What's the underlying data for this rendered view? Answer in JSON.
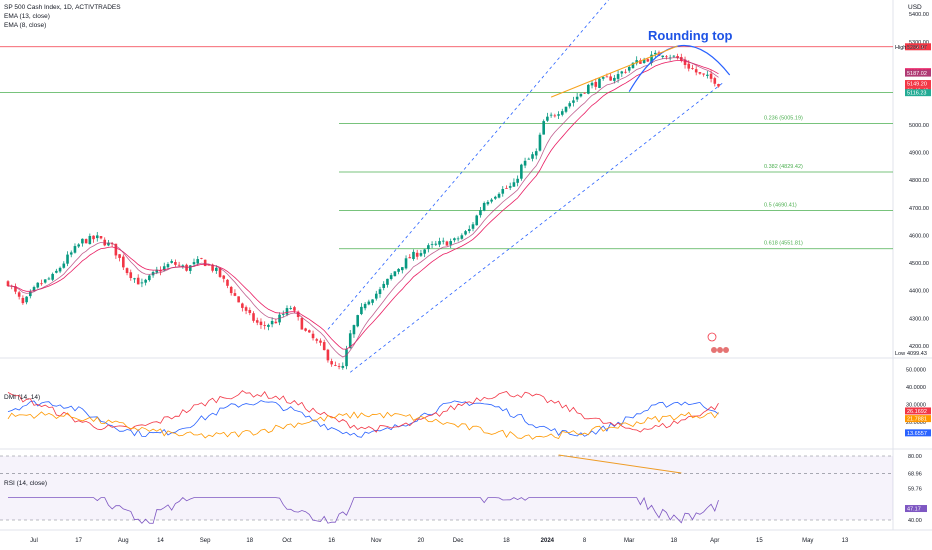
{
  "header": {
    "symbol": "SP 500 Cash Index, 1D, ACTIVTRADES",
    "ema1": "EMA (13, close)",
    "ema2": "EMA (8, close)",
    "currency": "USD"
  },
  "annotation": {
    "text": "Rounding top"
  },
  "price_axis": {
    "ticks": [
      "5400.00",
      "5300.00",
      "5000.00",
      "4900.00",
      "4800.00",
      "4700.00",
      "4600.00",
      "4500.00",
      "4400.00",
      "4300.00",
      "4200.00"
    ],
    "high_label": "High",
    "high_value": "5280.97",
    "low_label": "Low",
    "low_value": "4099.43",
    "tags": [
      "5282.17",
      "5192.04",
      "5187.02",
      "5149.20",
      "06:49:48",
      "5116.23"
    ]
  },
  "fib_levels": [
    {
      "label": "0.236 (5005.19)"
    },
    {
      "label": "0.382 (4829.42)"
    },
    {
      "label": "0.5 (4690.41)"
    },
    {
      "label": "0.618 (4551.81)"
    }
  ],
  "dmi": {
    "title": "DMI (14, 14)",
    "ticks": [
      "50.0000",
      "40.0000",
      "30.0000",
      "20.0000"
    ],
    "tags": [
      "26.1692",
      "21.7881",
      "13.6557"
    ]
  },
  "rsi": {
    "title": "RSI (14, close)",
    "ticks": [
      "80.00",
      "68.96",
      "59.76",
      "40.00"
    ],
    "tag": "47.17"
  },
  "time_axis": {
    "labels": [
      "Jul",
      "17",
      "Aug",
      "14",
      "Sep",
      "18",
      "Oct",
      "16",
      "Nov",
      "20",
      "Dec",
      "18",
      "2024",
      "8",
      "Mar",
      "18",
      "Apr",
      "15",
      "May",
      "13",
      "Jun"
    ]
  },
  "colors": {
    "up": "#089981",
    "down": "#f23645",
    "ema13": "#e91e63",
    "ema8": "#b03a74",
    "fib": "#4caf50",
    "channel": "#2962ff",
    "arc": "#2962ff",
    "trend": "#f7a21b",
    "di_plus": "#2962ff",
    "di_minus": "#f23645",
    "adx": "#ff9800",
    "rsi": "#7e57c2"
  },
  "chart_data": [
    {
      "type": "candlestick",
      "title": "SP 500 Cash Index, 1D, ACTIVTRADES",
      "series_names": [
        "EMA (13, close)",
        "EMA (8, close)"
      ],
      "ylabel": "USD",
      "ylim": [
        4099.43,
        5400
      ],
      "high": 5280.97,
      "low": 4099.43,
      "last": 5149.2,
      "fib_levels": [
        5005.19,
        4829.42,
        4690.41,
        4551.81
      ],
      "horizontal_levels": [
        5282.17,
        5116.23
      ],
      "x_labels": [
        "Jul",
        "17",
        "Aug",
        "14",
        "Sep",
        "18",
        "Oct",
        "16",
        "Nov",
        "20",
        "Dec",
        "18",
        "2024",
        "8",
        "Mar",
        "18",
        "Apr",
        "15",
        "May",
        "13",
        "Jun"
      ],
      "x_label_index": [
        0,
        12,
        24,
        34,
        46,
        58,
        68,
        80,
        92,
        104,
        114,
        127,
        138,
        148,
        160,
        172,
        183,
        195,
        208,
        218,
        232
      ],
      "close_points": [
        [
          0,
          4430
        ],
        [
          4,
          4350
        ],
        [
          8,
          4420
        ],
        [
          12,
          4450
        ],
        [
          16,
          4520
        ],
        [
          20,
          4580
        ],
        [
          24,
          4590
        ],
        [
          28,
          4560
        ],
        [
          32,
          4470
        ],
        [
          36,
          4420
        ],
        [
          40,
          4470
        ],
        [
          44,
          4500
        ],
        [
          48,
          4480
        ],
        [
          52,
          4510
        ],
        [
          56,
          4470
        ],
        [
          60,
          4400
        ],
        [
          64,
          4320
        ],
        [
          68,
          4270
        ],
        [
          72,
          4290
        ],
        [
          76,
          4340
        ],
        [
          80,
          4250
        ],
        [
          84,
          4200
        ],
        [
          88,
          4120
        ],
        [
          90,
          4120
        ],
        [
          92,
          4240
        ],
        [
          96,
          4360
        ],
        [
          100,
          4400
        ],
        [
          104,
          4470
        ],
        [
          108,
          4520
        ],
        [
          112,
          4550
        ],
        [
          116,
          4570
        ],
        [
          120,
          4580
        ],
        [
          124,
          4620
        ],
        [
          128,
          4720
        ],
        [
          132,
          4760
        ],
        [
          136,
          4780
        ],
        [
          138,
          4850
        ],
        [
          142,
          4900
        ],
        [
          144,
          5010
        ],
        [
          148,
          5050
        ],
        [
          152,
          5090
        ],
        [
          156,
          5140
        ],
        [
          160,
          5160
        ],
        [
          164,
          5180
        ],
        [
          168,
          5220
        ],
        [
          172,
          5240
        ],
        [
          176,
          5260
        ],
        [
          180,
          5240
        ],
        [
          182,
          5220
        ],
        [
          186,
          5180
        ],
        [
          190,
          5160
        ],
        [
          191,
          5149.2
        ]
      ]
    },
    {
      "type": "line",
      "title": "DMI (14, 14)",
      "ylim": [
        5,
        55
      ],
      "series": [
        {
          "name": "+DI",
          "last": 13.6557
        },
        {
          "name": "-DI",
          "last": 26.1692
        },
        {
          "name": "ADX",
          "last": 21.7881
        }
      ]
    },
    {
      "type": "line",
      "title": "RSI (14, close)",
      "ylim": [
        35,
        85
      ],
      "bands": [
        68.96,
        59.76
      ],
      "series": [
        {
          "name": "RSI",
          "last": 47.17
        }
      ]
    }
  ]
}
